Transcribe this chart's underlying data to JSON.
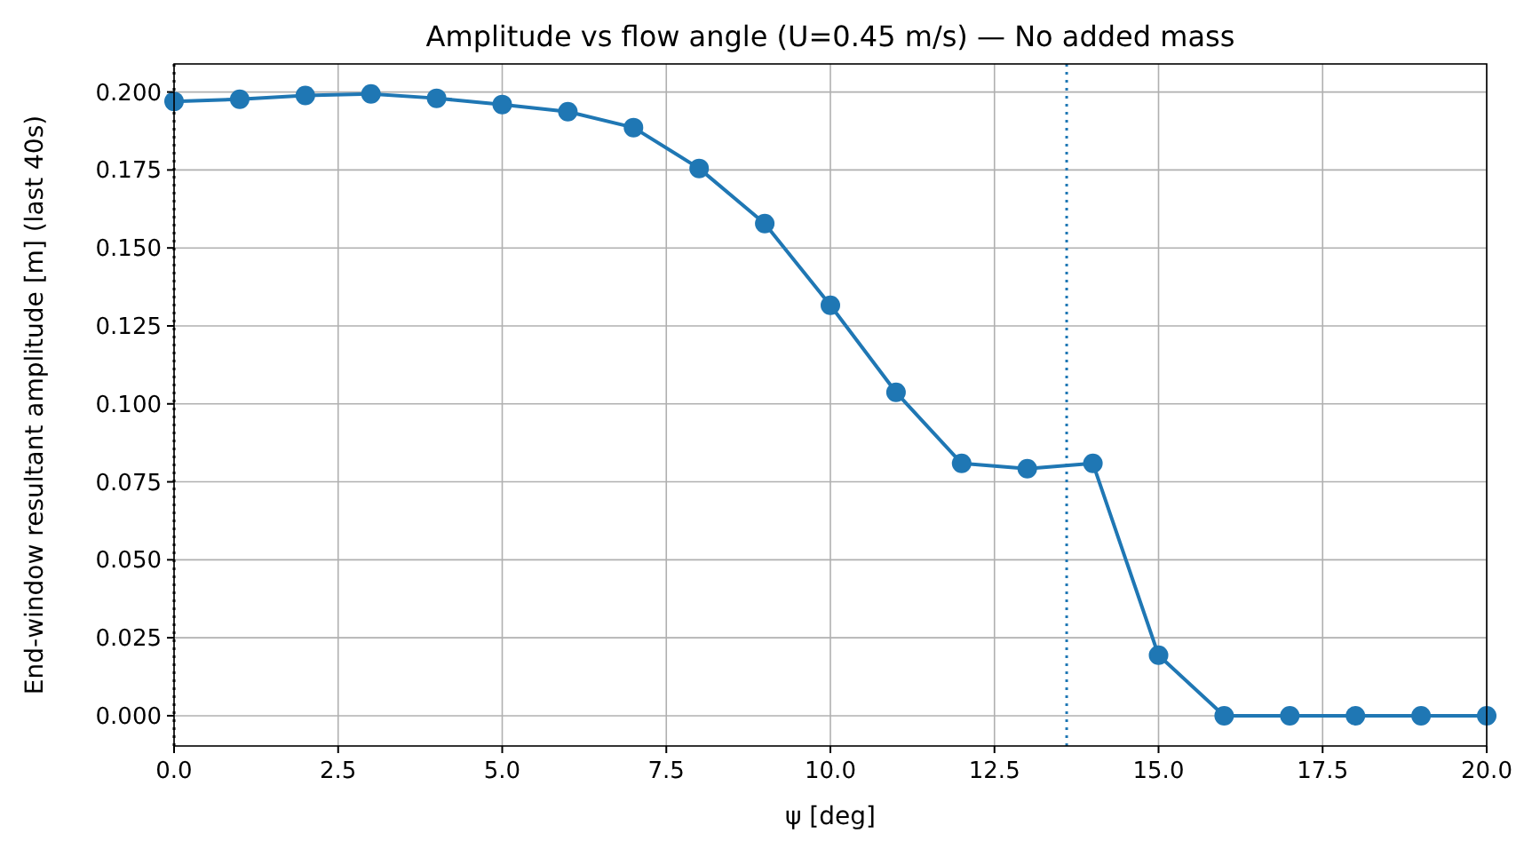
{
  "chart_data": {
    "type": "line",
    "title": "Amplitude vs flow angle (U=0.45 m/s) — No added mass",
    "xlabel": "ψ [deg]",
    "ylabel": "End-window resultant amplitude [m] (last 40s)",
    "x": [
      0,
      1,
      2,
      3,
      4,
      5,
      6,
      7,
      8,
      9,
      10,
      11,
      12,
      13,
      14,
      15,
      16,
      17,
      18,
      19,
      20
    ],
    "series": [
      {
        "color": "#1f77b4",
        "values": [
          0.197,
          0.1977,
          0.1989,
          0.1994,
          0.198,
          0.196,
          0.1937,
          0.1886,
          0.1755,
          0.1578,
          0.1316,
          0.1037,
          0.0809,
          0.0792,
          0.0809,
          0.0194,
          0,
          0,
          0,
          0,
          0
        ]
      }
    ],
    "xlim": [
      0,
      20
    ],
    "xticks": [
      {
        "value": 0,
        "label": "0.0"
      },
      {
        "value": 2.5,
        "label": "2.5"
      },
      {
        "value": 5,
        "label": "5.0"
      },
      {
        "value": 7.5,
        "label": "7.5"
      },
      {
        "value": 10,
        "label": "10.0"
      },
      {
        "value": 12.5,
        "label": "12.5"
      },
      {
        "value": 15,
        "label": "15.0"
      },
      {
        "value": 17.5,
        "label": "17.5"
      },
      {
        "value": 20,
        "label": "20.0"
      }
    ],
    "ylim": [
      -0.0097,
      0.209
    ],
    "yticks": [
      {
        "value": 0,
        "label": "0.000"
      },
      {
        "value": 0.025,
        "label": "0.025"
      },
      {
        "value": 0.05,
        "label": "0.050"
      },
      {
        "value": 0.075,
        "label": "0.075"
      },
      {
        "value": 0.1,
        "label": "0.100"
      },
      {
        "value": 0.125,
        "label": "0.125"
      },
      {
        "value": 0.15,
        "label": "0.150"
      },
      {
        "value": 0.175,
        "label": "0.175"
      },
      {
        "value": 0.2,
        "label": "0.200"
      }
    ],
    "ref_lines": [
      {
        "axis": "x",
        "value": 0,
        "color": "#000000",
        "line_style": "dotted"
      },
      {
        "axis": "x",
        "value": 13.6,
        "color": "#1f77b4",
        "line_style": "dotted"
      }
    ],
    "grid": true,
    "marker": "circle",
    "line_style": "solid"
  }
}
